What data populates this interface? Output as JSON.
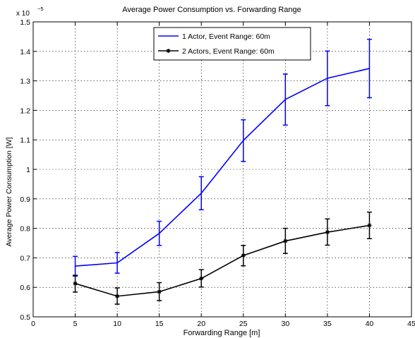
{
  "chart_data": {
    "type": "line",
    "title": "Average Power Consumption vs. Forwarding Range",
    "xlabel": "Forwarding Range [m]",
    "ylabel": "Average Power Consumption [W]",
    "y_multiplier": {
      "base": "x 10",
      "exponent": "−5"
    },
    "xlim": [
      0,
      45
    ],
    "ylim": [
      0.5,
      1.5
    ],
    "xticks": [
      0,
      5,
      10,
      15,
      20,
      25,
      30,
      35,
      40,
      45
    ],
    "xtick_labels": [
      "0",
      "5",
      "10",
      "15",
      "20",
      "25",
      "30",
      "35",
      "40",
      "45"
    ],
    "yticks": [
      0.5,
      0.6,
      0.7,
      0.8,
      0.9,
      1.0,
      1.1,
      1.2,
      1.3,
      1.4,
      1.5
    ],
    "ytick_labels": [
      "0.5",
      "0.6",
      "0.7",
      "0.8",
      "0.9",
      "1",
      "1.1",
      "1.2",
      "1.3",
      "1.4",
      "1.5"
    ],
    "grid": true,
    "legend_position": "top-center",
    "x": [
      5,
      10,
      15,
      20,
      25,
      30,
      35,
      40
    ],
    "series": [
      {
        "name": "1 Actor, Event Range: 60m",
        "color": "#0000ff",
        "marker": "none",
        "values": [
          0.672,
          0.683,
          0.783,
          0.919,
          1.098,
          1.237,
          1.309,
          1.342
        ],
        "err_low": [
          0.638,
          0.648,
          0.742,
          0.863,
          1.027,
          1.15,
          1.216,
          1.243
        ],
        "err_high": [
          0.705,
          0.718,
          0.824,
          0.975,
          1.168,
          1.323,
          1.401,
          1.441
        ]
      },
      {
        "name": "2 Actors, Event Range: 60m",
        "color": "#000000",
        "marker": "star",
        "values": [
          0.613,
          0.57,
          0.585,
          0.63,
          0.708,
          0.757,
          0.787,
          0.81
        ],
        "err_low": [
          0.584,
          0.543,
          0.555,
          0.601,
          0.673,
          0.715,
          0.743,
          0.765
        ],
        "err_high": [
          0.641,
          0.598,
          0.616,
          0.66,
          0.742,
          0.8,
          0.832,
          0.855
        ]
      }
    ]
  }
}
